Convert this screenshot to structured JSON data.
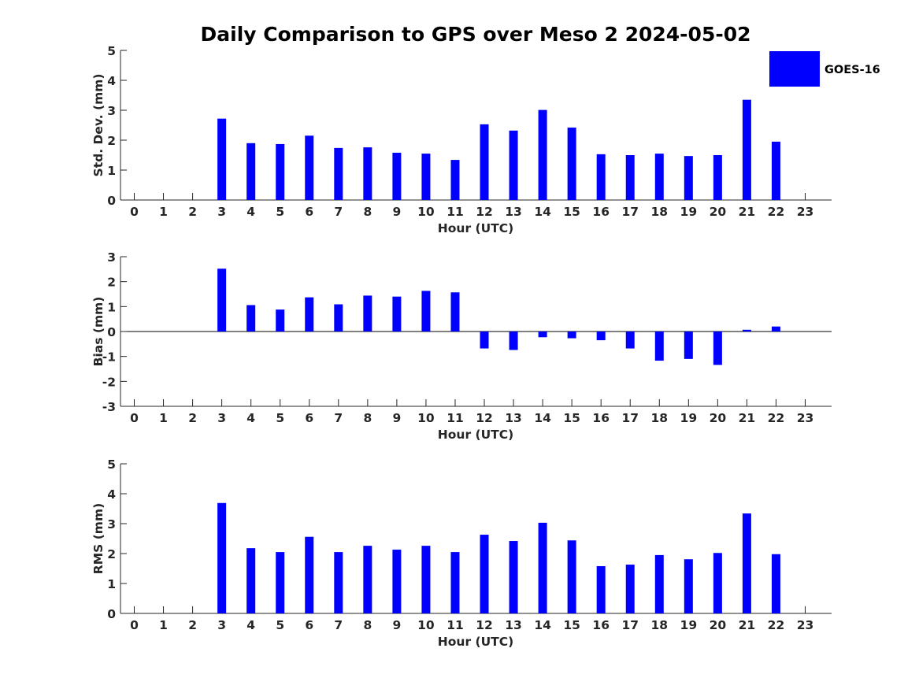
{
  "figure": {
    "title": "Daily Comparison to GPS over Meso 2 2024-05-02"
  },
  "legend": {
    "label": "GOES-16",
    "color": "#0000ff",
    "placement": "top-right"
  },
  "chart_data": [
    {
      "type": "bar",
      "ylabel": "Std. Dev. (mm)",
      "xlabel": "Hour (UTC)",
      "ylim": [
        0,
        5
      ],
      "yticks": [
        "0",
        "1",
        "2",
        "3",
        "4",
        "5"
      ],
      "categories": [
        "0",
        "1",
        "2",
        "3",
        "4",
        "5",
        "6",
        "7",
        "8",
        "9",
        "10",
        "11",
        "12",
        "13",
        "14",
        "15",
        "16",
        "17",
        "18",
        "19",
        "20",
        "21",
        "22",
        "23"
      ],
      "series": [
        {
          "name": "GOES-16",
          "color": "#0000ff",
          "values": [
            null,
            null,
            null,
            2.72,
            1.9,
            1.87,
            2.15,
            1.74,
            1.76,
            1.58,
            1.55,
            1.34,
            2.53,
            2.32,
            3.01,
            2.42,
            1.53,
            1.5,
            1.55,
            1.47,
            1.5,
            3.35,
            1.95,
            null
          ]
        }
      ]
    },
    {
      "type": "bar",
      "ylabel": "Bias (mm)",
      "xlabel": "Hour (UTC)",
      "ylim": [
        -3,
        3
      ],
      "yticks": [
        "-3",
        "-2",
        "-1",
        "0",
        "1",
        "2",
        "3"
      ],
      "categories": [
        "0",
        "1",
        "2",
        "3",
        "4",
        "5",
        "6",
        "7",
        "8",
        "9",
        "10",
        "11",
        "12",
        "13",
        "14",
        "15",
        "16",
        "17",
        "18",
        "19",
        "20",
        "21",
        "22",
        "23"
      ],
      "series": [
        {
          "name": "GOES-16",
          "color": "#0000ff",
          "values": [
            null,
            null,
            null,
            2.52,
            1.06,
            0.88,
            1.37,
            1.09,
            1.44,
            1.4,
            1.63,
            1.57,
            -0.68,
            -0.74,
            -0.23,
            -0.27,
            -0.35,
            -0.68,
            -1.17,
            -1.1,
            -1.34,
            0.07,
            0.2,
            null
          ]
        }
      ]
    },
    {
      "type": "bar",
      "ylabel": "RMS (mm)",
      "xlabel": "Hour (UTC)",
      "ylim": [
        0,
        5
      ],
      "yticks": [
        "0",
        "1",
        "2",
        "3",
        "4",
        "5"
      ],
      "categories": [
        "0",
        "1",
        "2",
        "3",
        "4",
        "5",
        "6",
        "7",
        "8",
        "9",
        "10",
        "11",
        "12",
        "13",
        "14",
        "15",
        "16",
        "17",
        "18",
        "19",
        "20",
        "21",
        "22",
        "23"
      ],
      "series": [
        {
          "name": "GOES-16",
          "color": "#0000ff",
          "values": [
            null,
            null,
            null,
            3.69,
            2.18,
            2.05,
            2.56,
            2.05,
            2.26,
            2.13,
            2.26,
            2.05,
            2.63,
            2.42,
            3.03,
            2.44,
            1.58,
            1.63,
            1.95,
            1.81,
            2.02,
            3.34,
            1.98,
            null
          ]
        }
      ]
    }
  ]
}
